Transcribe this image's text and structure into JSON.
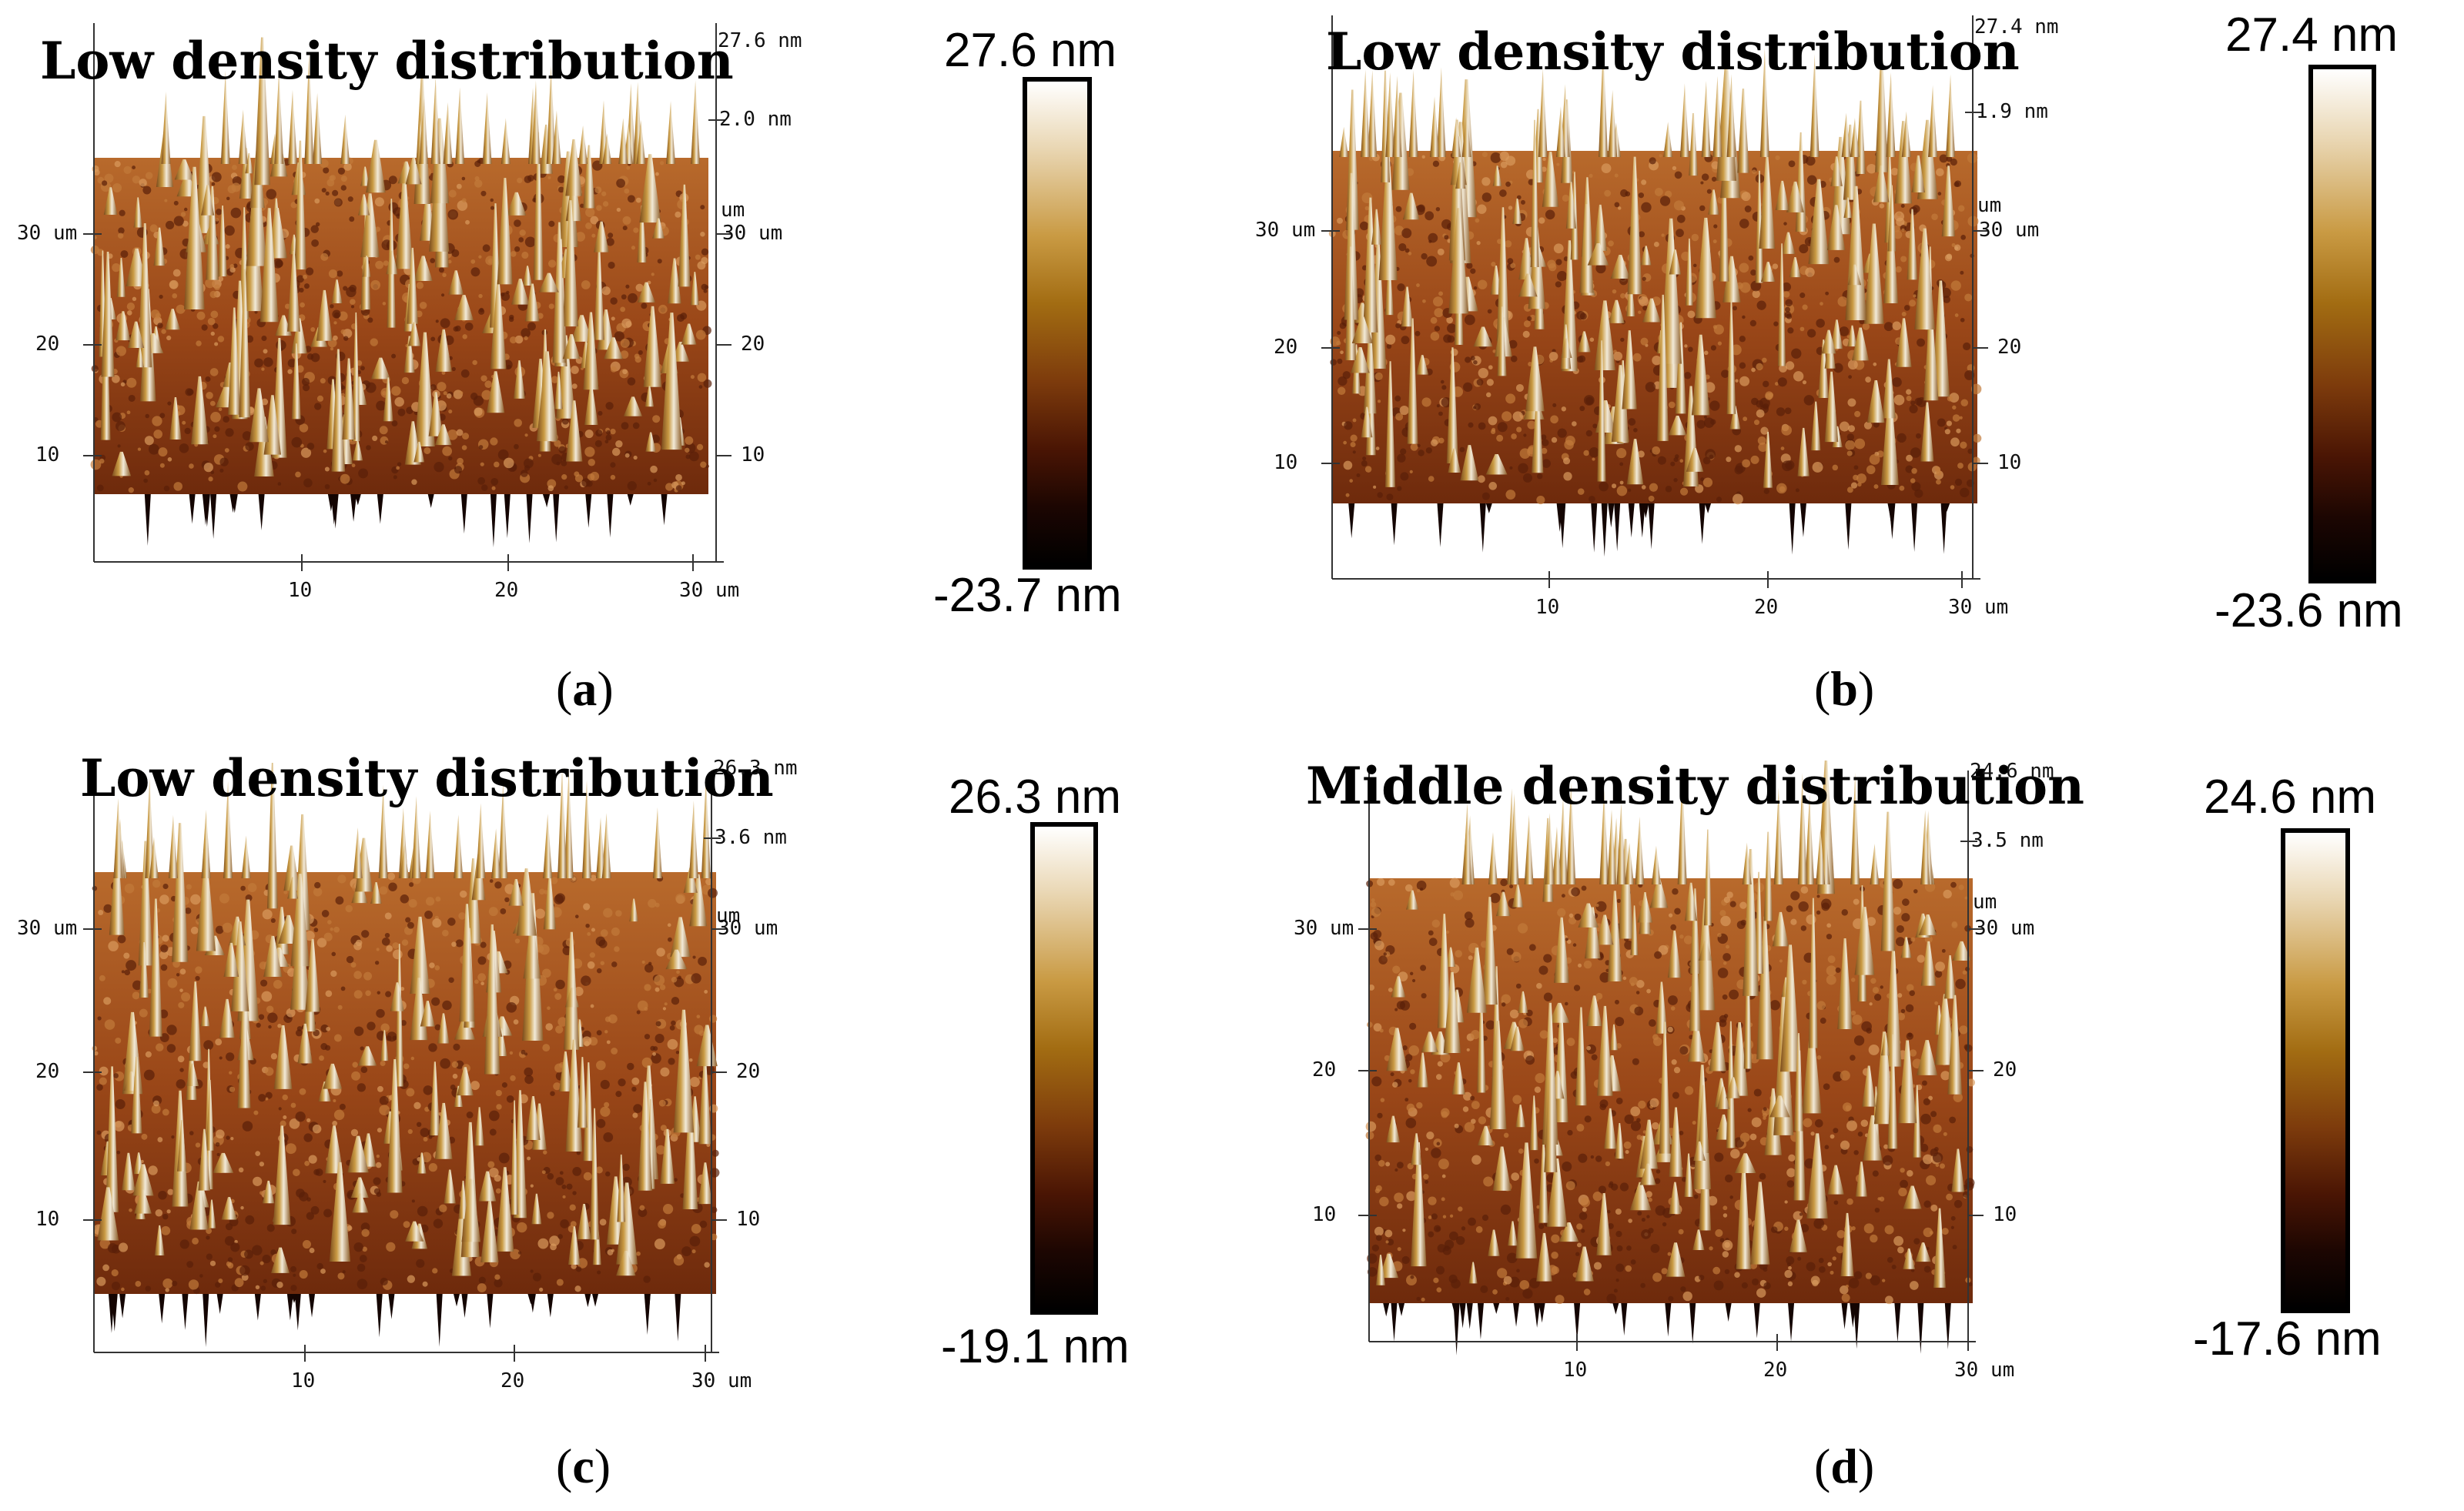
{
  "figure": {
    "panels": [
      {
        "id": "a",
        "title": "Low density distribution",
        "z_max": "27.6 nm",
        "z_sub": "2.0 nm",
        "scale_top": "27.6 nm",
        "scale_bottom": "-23.7 nm",
        "label": "a"
      },
      {
        "id": "b",
        "title": "Low density distribution",
        "z_max": "27.4 nm",
        "z_sub": "1.9 nm",
        "scale_top": "27.4 nm",
        "scale_bottom": "-23.6 nm",
        "label": "b"
      },
      {
        "id": "c",
        "title": "Low density distribution",
        "z_max": "26.3 nm",
        "z_sub": "3.6 nm",
        "scale_top": "26.3 nm",
        "scale_bottom": "-19.1 nm",
        "label": "c"
      },
      {
        "id": "d",
        "title": "Middle density distribution",
        "z_max": "24.6 nm",
        "z_sub": "3.5 nm",
        "scale_top": "24.6 nm",
        "scale_bottom": "-17.6 nm",
        "label": "d"
      }
    ],
    "axis": {
      "x_ticks": [
        "10",
        "20",
        "30 um"
      ],
      "y_ticks_left": [
        "10",
        "20",
        "30 um"
      ],
      "y_ticks_right": [
        "10",
        "20",
        "30 um"
      ],
      "unit_label": "um"
    },
    "colors": {
      "surface_dark": "#6e2a0c",
      "surface_mid": "#9a4718",
      "surface_light": "#b86a2c",
      "peak_light": "#f2ead8",
      "peak_mid": "#c99a43"
    }
  }
}
